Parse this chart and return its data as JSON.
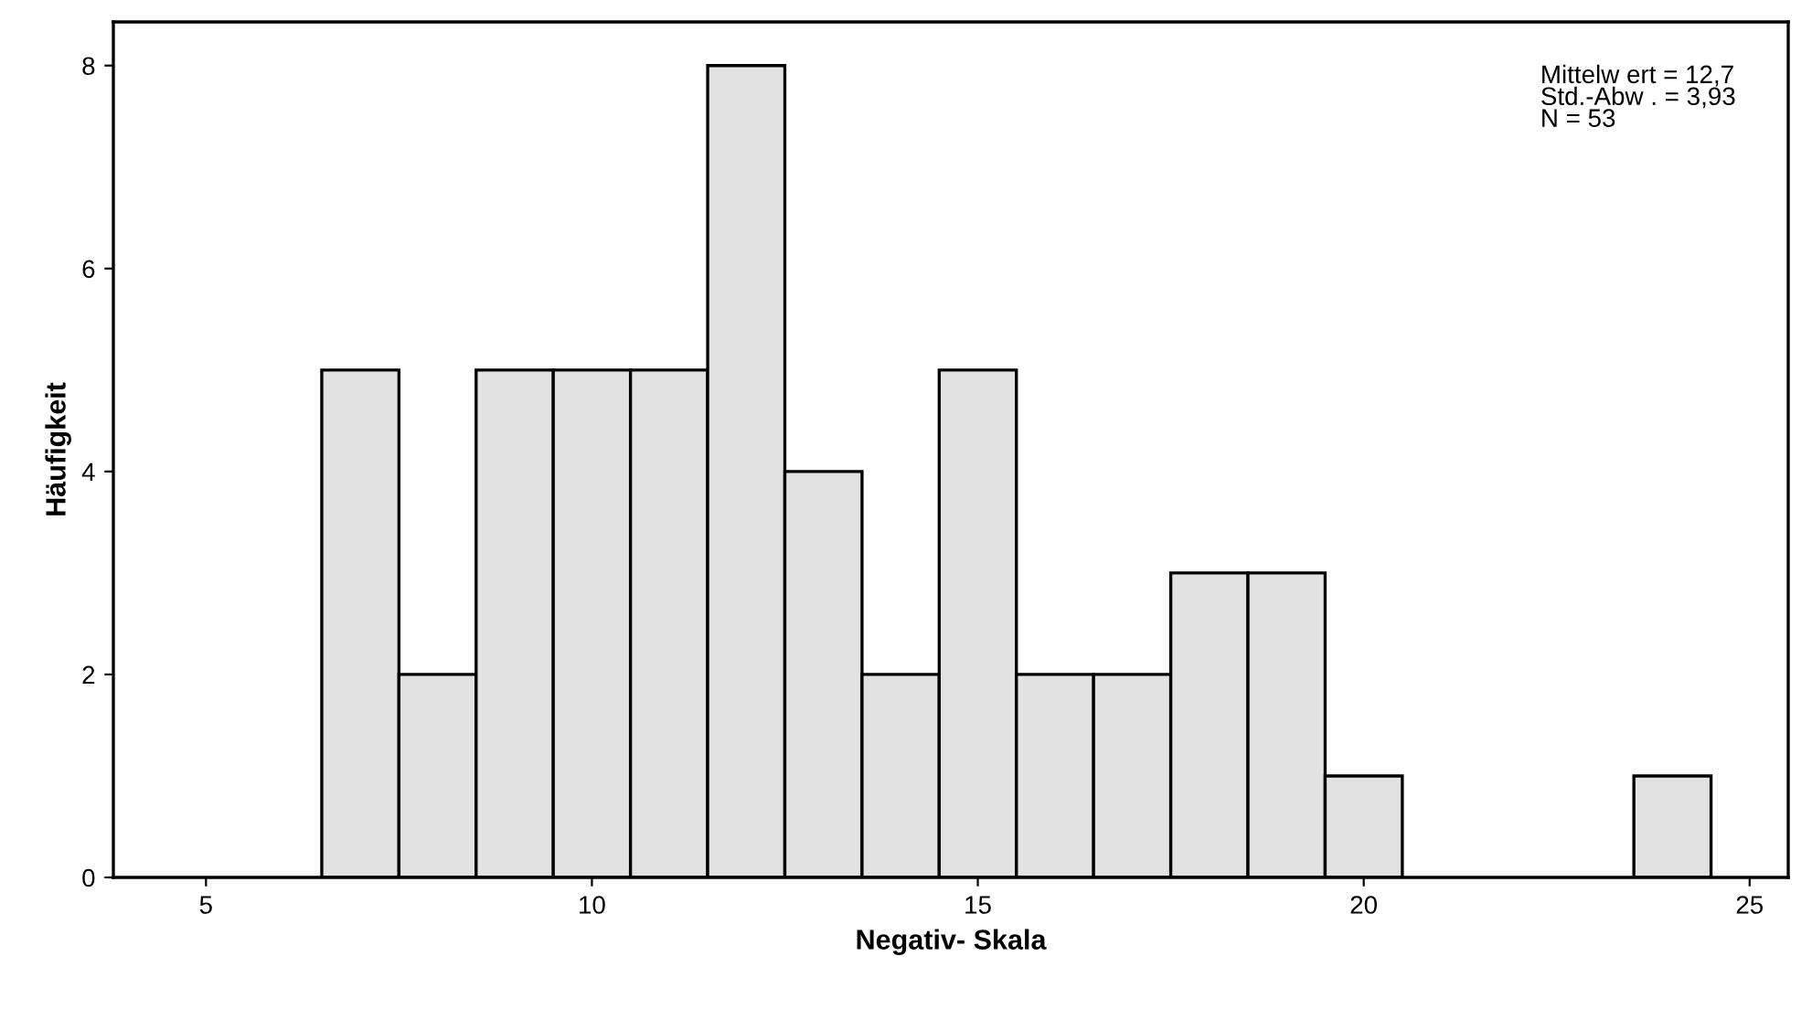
{
  "chart_data": {
    "type": "histogram",
    "xlabel": "Negativ- Skala",
    "ylabel": "Häufigkeit",
    "bins": [
      6.5,
      7.5,
      8.5,
      9.5,
      10.5,
      11.5,
      12.5,
      13.5,
      14.5,
      15.5,
      16.5,
      17.5,
      18.5,
      19.5,
      20.5,
      21.5,
      22.5,
      23.5,
      24.5
    ],
    "values": [
      5,
      2,
      5,
      5,
      5,
      8,
      4,
      2,
      5,
      2,
      2,
      3,
      3,
      1,
      0,
      0,
      0,
      1
    ],
    "color": "#e2e2e2",
    "xlim": [
      3.8,
      25.5
    ],
    "xticks": [
      5,
      10,
      15,
      20,
      25
    ],
    "ylim": [
      0,
      8.43
    ],
    "yticks": [
      0,
      2,
      4,
      6,
      8
    ],
    "annotations": [
      "Mittelw ert = 12,7",
      "Std.-Abw . = 3,93",
      "N = 53"
    ],
    "grid": false
  }
}
